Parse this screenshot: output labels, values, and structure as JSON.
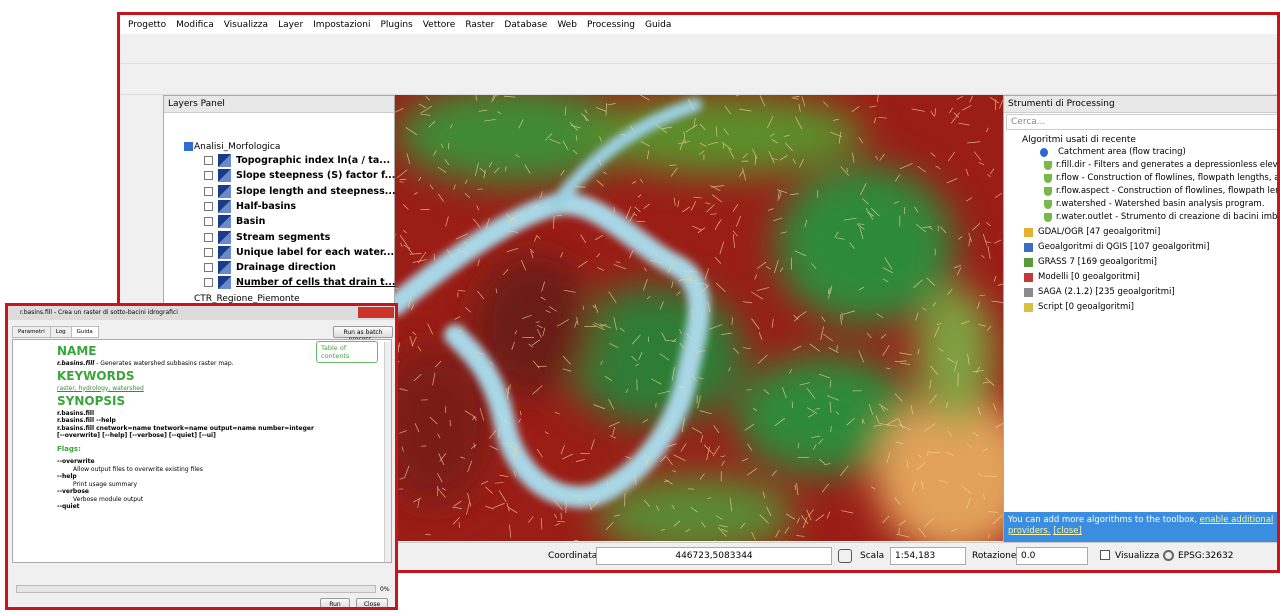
{
  "menu": [
    "Progetto",
    "Modifica",
    "Visualizza",
    "Layer",
    "Impostazioni",
    "Plugins",
    "Vettore",
    "Raster",
    "Database",
    "Web",
    "Processing",
    "Guida"
  ],
  "layers_panel": {
    "title": "Layers Panel",
    "group": "Analisi_Morfologica",
    "layers": [
      "Topographic index ln(a / ta...",
      "Slope steepness (S) factor f...",
      "Slope length and steepness...",
      "Half-basins",
      "Basin",
      "Stream segments",
      "Unique label for each water...",
      "Drainage direction",
      "Number of cells that drain t..."
    ],
    "group2": "CTR_Regione_Piemonte"
  },
  "processing_panel": {
    "title": "Strumenti di Processing",
    "search": "Cerca...",
    "recent": "Algoritmi usati di recente",
    "recent_items": [
      "Catchment area (flow tracing)",
      "r.fill.dir - Filters and generates a depressionless elevati...",
      "r.flow - Construction of flowlines, flowpath lengths, an...",
      "r.flow.aspect - Construction of flowlines, flowpath leng...",
      "r.watershed - Watershed basin analysis program.",
      "r.water.outlet - Strumento di creazione di bacini imbriferi"
    ],
    "providers": [
      "GDAL/OGR [47 geoalgoritmi]",
      "Geoalgoritmi di QGIS [107 geoalgoritmi]",
      "GRASS 7 [169 geoalgoritmi]",
      "Modelli [0 geoalgoritmi]",
      "SAGA (2.1.2) [235 geoalgoritmi]",
      "Script [0 geoalgoritmi]"
    ],
    "notice": "You can add more algorithms to the toolbox,",
    "notice_link": "enable additional providers.",
    "notice_close": "[close]"
  },
  "status_bar": {
    "coord_label": "Coordinata",
    "coord": "446723,5083344",
    "scale_label": "Scala",
    "scale": "1:54,183",
    "rotation_label": "Rotazione",
    "rotation": "0.0",
    "render": "Visualizza",
    "crs": "EPSG:32632"
  },
  "dialog": {
    "title": "r.basins.fill - Crea un raster di sotto-bacini idrografici",
    "tabs": [
      "Parametri",
      "Log",
      "Guida"
    ],
    "batch_button": "Run as batch process...",
    "toc": "Table of contents",
    "help": {
      "name_heading": "NAME",
      "name_cmd": "r.basins.fill",
      "name_desc": " - Generates watershed subbasins raster map.",
      "keywords_heading": "KEYWORDS",
      "keywords": "raster, hydrology, watershed",
      "synopsis_heading": "SYNOPSIS",
      "synopsis": [
        "r.basins.fill",
        "r.basins.fill --help",
        "r.basins.fill cnetwork=name tnetwork=name output=name number=integer [--overwrite] [--help] [--verbose] [--quiet] [--ui]"
      ],
      "flags_heading": "Flags:",
      "flags": [
        [
          "--overwrite",
          "Allow output files to overwrite existing files"
        ],
        [
          "--help",
          "Print usage summary"
        ],
        [
          "--verbose",
          "Verbose module output"
        ],
        [
          "--quiet",
          ""
        ]
      ]
    },
    "progress": "0%",
    "run": "Run",
    "close": "Close"
  }
}
